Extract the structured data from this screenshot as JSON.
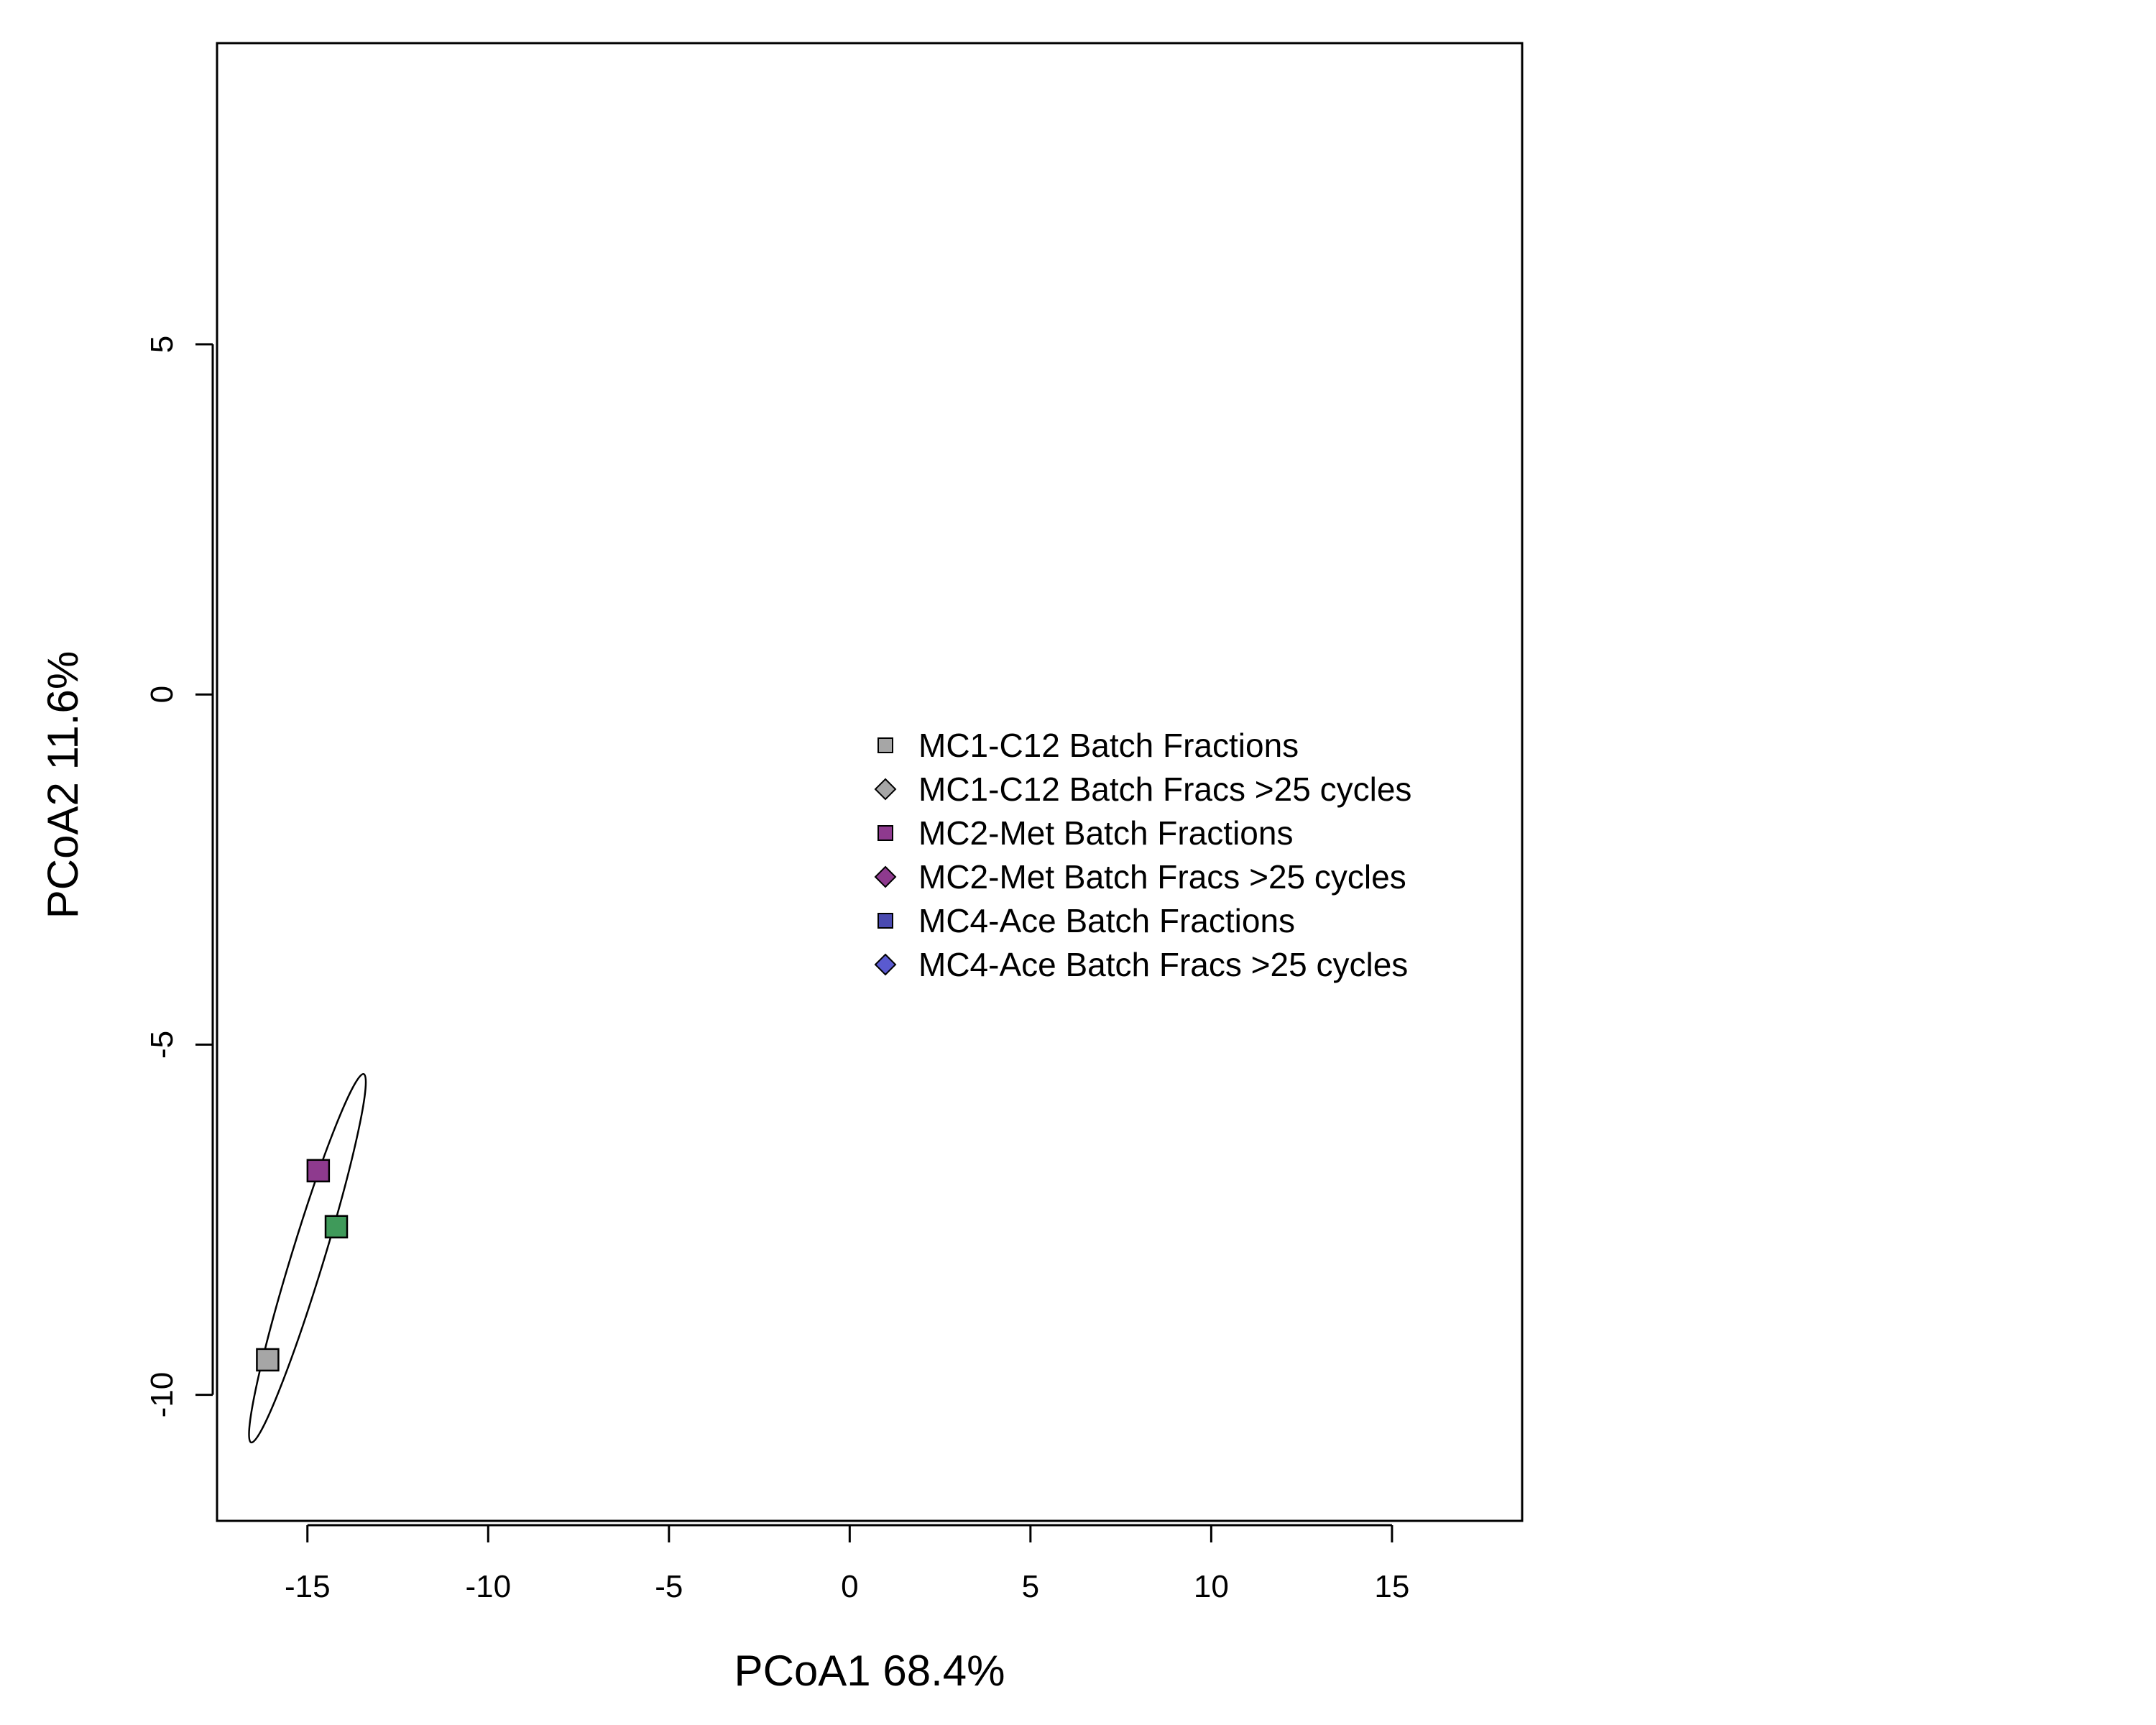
{
  "chart_data": {
    "type": "scatter",
    "title": "",
    "xlabel": "PCoA1 68.4%",
    "ylabel": "PCoA2 11.6%",
    "xlim": [
      -17.5,
      18.6
    ],
    "ylim": [
      -11.8,
      9.3
    ],
    "x_ticks": [
      -15,
      -10,
      -5,
      0,
      5,
      10,
      15
    ],
    "y_ticks": [
      -10,
      -5,
      0,
      5
    ],
    "grid": false,
    "legend_position": "center-right",
    "points": [
      {
        "x": -16.1,
        "y": -9.5,
        "shape": "square",
        "color": "#a6a6a6"
      },
      {
        "x": -14.7,
        "y": -6.8,
        "shape": "square",
        "color": "#8e3a8e"
      },
      {
        "x": -14.2,
        "y": -7.6,
        "shape": "square",
        "color": "#3f9a5a"
      }
    ],
    "ellipse": {
      "cx": -15.0,
      "cy": -8.05,
      "rx": 0.45,
      "ry": 2.75,
      "angle_deg": 17
    },
    "legend": [
      {
        "label": "MC1-C12 Batch Fractions",
        "shape": "square",
        "color": "#a6a6a6"
      },
      {
        "label": "MC1-C12 Batch Fracs >25 cycles",
        "shape": "diamond",
        "color": "#a6a6a6"
      },
      {
        "label": "MC2-Met Batch Fractions",
        "shape": "square",
        "color": "#8e3a8e"
      },
      {
        "label": "MC2-Met Batch Fracs >25 cycles",
        "shape": "diamond",
        "color": "#8e3a8e"
      },
      {
        "label": "MC4-Ace Batch Fractions",
        "shape": "square",
        "color": "#4a4ab0"
      },
      {
        "label": "MC4-Ace Batch Fracs >25 cycles",
        "shape": "diamond",
        "color": "#5a5ad0"
      }
    ]
  }
}
